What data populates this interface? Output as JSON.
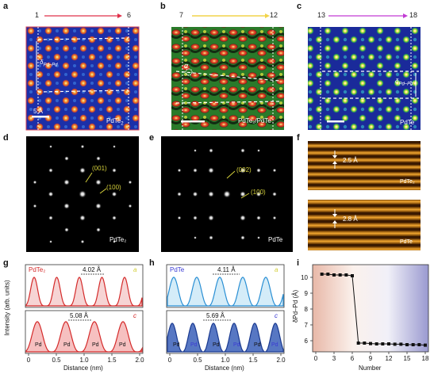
{
  "panels": {
    "a": {
      "letter": "a",
      "start": "1",
      "end": "6",
      "label_main": "PdTe",
      "label_sub": "2",
      "scale": "5 Å",
      "delta": "δ",
      "delta_sub": "Pd–Pd"
    },
    "b": {
      "letter": "b",
      "start": "7",
      "end": "12",
      "label": "PdTe₂/PdTe",
      "alpha": "α"
    },
    "c": {
      "letter": "c",
      "start": "13",
      "end": "18",
      "label": "PdTe",
      "delta": "δ",
      "delta_sub": "Pd–Pd"
    },
    "d": {
      "letter": "d",
      "label": "PdTe₂",
      "spot1": "(001)",
      "spot2": "(100)"
    },
    "e": {
      "letter": "e",
      "label": "PdTe",
      "spot1": "(002)",
      "spot2": "(100)"
    },
    "f": {
      "letter": "f",
      "top_value": "2.5 Å",
      "top_label": "PdTe₂",
      "bottom_value": "2.8 Å",
      "bottom_label": "PdTe"
    },
    "g": {
      "letter": "g",
      "top_label": "PdTe₂",
      "top_dist": "4.02 Å",
      "top_axis": "a",
      "bottom_dist": "5.08 Å",
      "bottom_axis": "c",
      "pd": "Pd"
    },
    "h": {
      "letter": "h",
      "top_label": "PdTe",
      "top_dist": "4.11 Å",
      "top_axis": "a",
      "bottom_dist": "5.69 Å",
      "bottom_axis": "c",
      "pd": "Pd"
    },
    "i": {
      "letter": "i"
    }
  },
  "shared_axes": {
    "ylabel": "Intensity (arb. units)",
    "xlabel": "Distance (nm)",
    "ticks": [
      "0",
      "0.5",
      "1.0",
      "1.5",
      "2.0"
    ]
  },
  "colors": {
    "arrow_a": "#e0304a",
    "arrow_b": "#f2d44a",
    "arrow_c": "#c23ad4",
    "red_curve": "#d42a2a",
    "blue_curve": "#2a8fd4",
    "dark_blue_fill": "#3a5fb8",
    "label_yellow": "#d4cf3a",
    "label_red": "#d42a2a",
    "label_blue": "#3a3ad4"
  },
  "chart_data": {
    "type": "scatter",
    "xlabel": "Number",
    "ylabel": "δPd–Pd (Å)",
    "xticks": [
      "0",
      "3",
      "6",
      "9",
      "12",
      "15",
      "18"
    ],
    "yticks": [
      "6",
      "7",
      "8",
      "9",
      "10"
    ],
    "xlim": [
      0,
      18
    ],
    "ylim": [
      5.5,
      10.6
    ],
    "x": [
      1,
      2,
      3,
      4,
      5,
      6,
      7,
      8,
      9,
      10,
      11,
      12,
      13,
      14,
      15,
      16,
      17,
      18
    ],
    "y": [
      10.2,
      10.2,
      10.15,
      10.15,
      10.15,
      10.1,
      5.85,
      5.85,
      5.82,
      5.8,
      5.8,
      5.8,
      5.78,
      5.78,
      5.75,
      5.75,
      5.75,
      5.72
    ]
  }
}
